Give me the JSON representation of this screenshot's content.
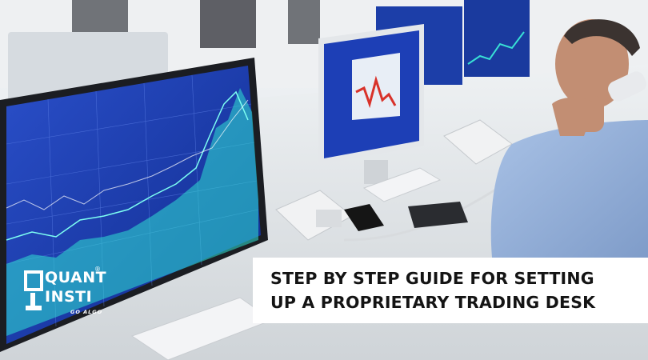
{
  "banner": {
    "line1": "STEP BY STEP GUIDE FOR SETTING",
    "line2": "UP A PROPRIETARY TRADING DESK"
  },
  "logo": {
    "word1": "QUANT",
    "word2": "INSTI",
    "tagline": "GO ALGO",
    "registered": "®"
  },
  "colors": {
    "screen_blue": "#1d3fb6",
    "chart_cyan": "#2fe0d2",
    "banner_bg": "#ffffff",
    "banner_text": "#141414"
  }
}
